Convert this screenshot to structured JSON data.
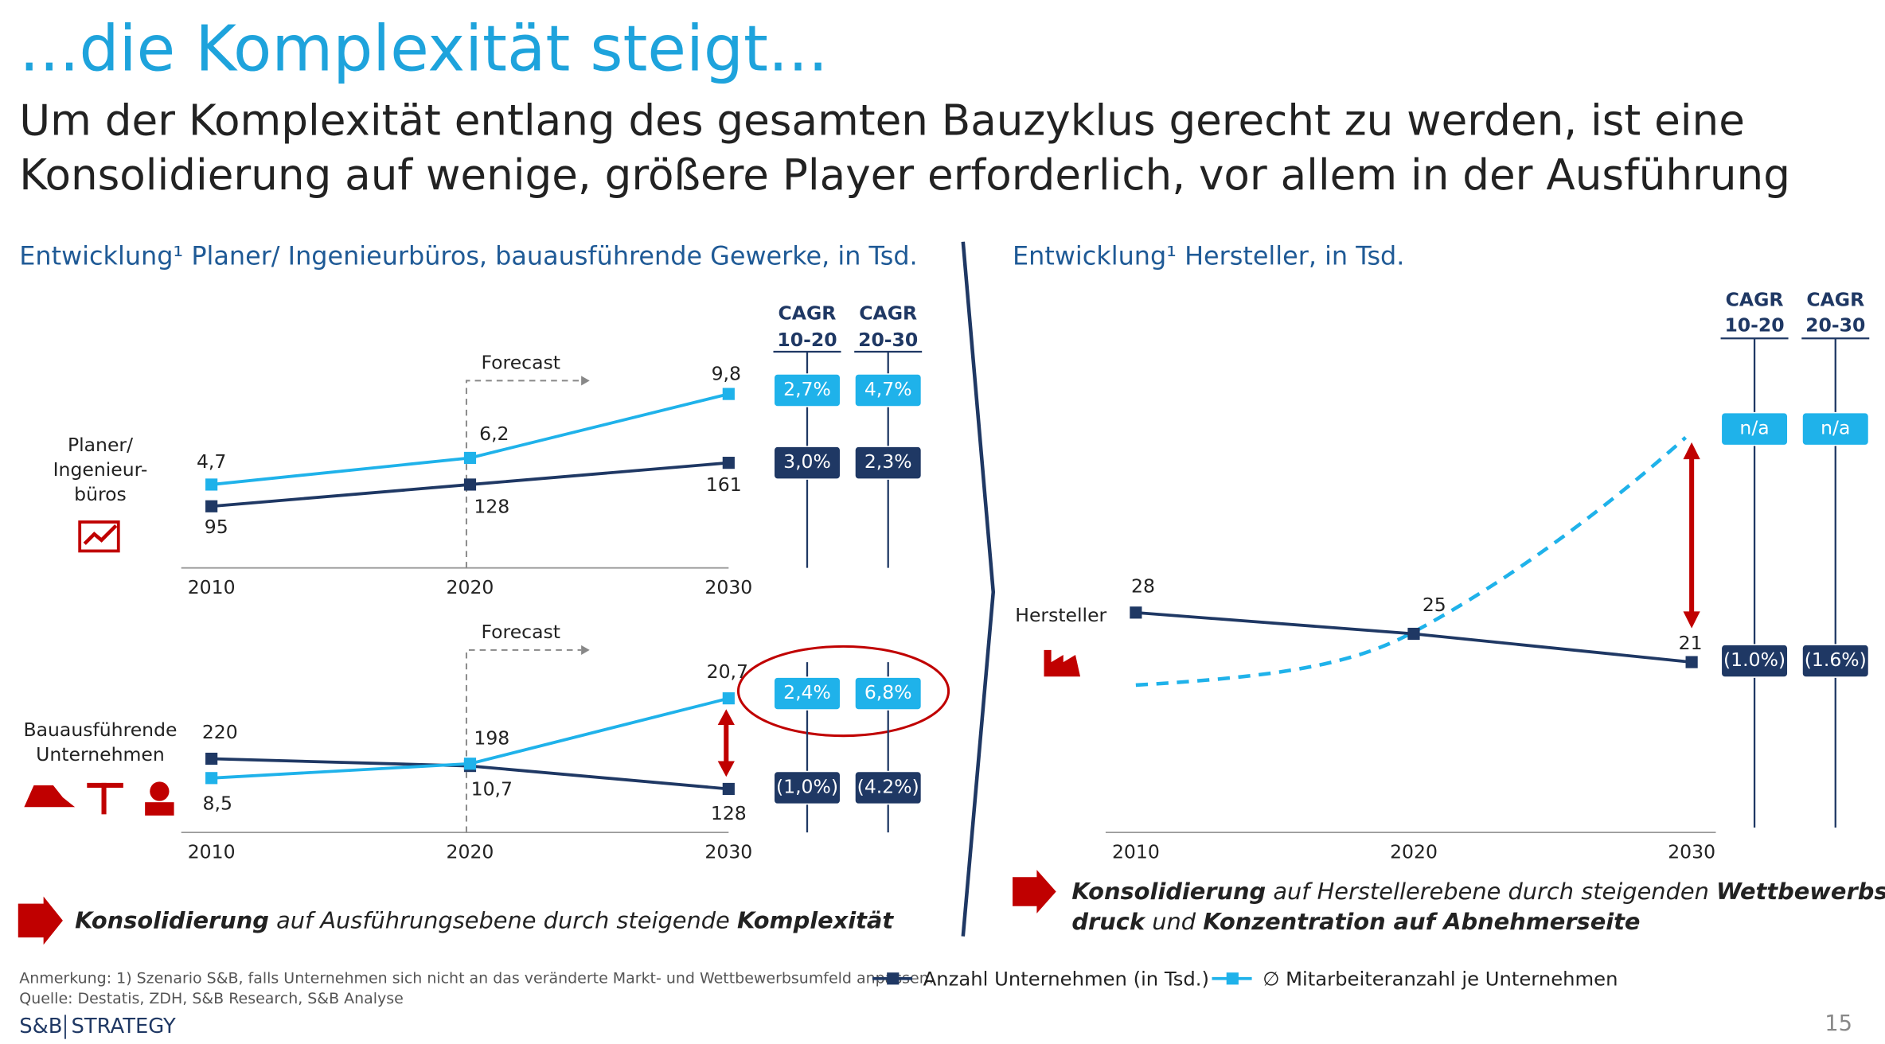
{
  "title": "...die Komplexität steigt...",
  "subtitle_lines": [
    "Um der Komplexität entlang des gesamten Bauzyklus gerecht zu werden, ist eine",
    "Konsolidierung auf wenige, größere Player erforderlich, vor allem in der Ausführung"
  ],
  "left_heading": "Entwicklung¹ Planer/ Ingenieurbüros, bauausführende Gewerke, in Tsd.",
  "right_heading": "Entwicklung¹ Hersteller, in Tsd.",
  "chart_data": [
    {
      "type": "line",
      "label_lines": [
        "Planer/",
        "Ingenieur-",
        "büros"
      ],
      "annotation": "Forecast",
      "x": [
        2010,
        2020,
        2030
      ],
      "xlim": [
        2010,
        2030
      ],
      "xticks": [
        2010,
        2020,
        2030
      ],
      "series": [
        {
          "color": "#1f3864",
          "values": [
            95,
            128,
            161
          ]
        },
        {
          "color": "#1fb2ea",
          "values": [
            4.7,
            6.2,
            9.8
          ],
          "value_labels": [
            "4,7",
            "6,2",
            "9,8"
          ]
        }
      ],
      "cagr_headers": [
        [
          "CAGR",
          "10-20"
        ],
        [
          "CAGR",
          "20-30"
        ]
      ],
      "cagr_rows": [
        [
          "2,7%",
          "4,7%"
        ],
        [
          "3,0%",
          "2,3%"
        ]
      ]
    },
    {
      "type": "line",
      "label_lines": [
        "Bauausführende",
        "Unternehmen"
      ],
      "annotation": "Forecast",
      "x": [
        2010,
        2020,
        2030
      ],
      "xlim": [
        2010,
        2030
      ],
      "xticks": [
        2010,
        2020,
        2030
      ],
      "series": [
        {
          "color": "#1f3864",
          "values": [
            220,
            198,
            128
          ]
        },
        {
          "color": "#1fb2ea",
          "values": [
            8.5,
            10.7,
            20.7
          ],
          "value_labels": [
            "8,5",
            "10,7",
            "20,7"
          ]
        }
      ],
      "cagr_rows": [
        [
          "2,4%",
          "6,8%"
        ],
        [
          "(1,0%)",
          "(4.2%)"
        ]
      ]
    },
    {
      "type": "line",
      "label_lines": [
        "Hersteller"
      ],
      "x": [
        2010,
        2020,
        2030
      ],
      "xlim": [
        2010,
        2030
      ],
      "xticks": [
        2010,
        2020,
        2030
      ],
      "series": [
        {
          "color": "#1f3864",
          "values": [
            28,
            25,
            21
          ]
        }
      ],
      "cagr_headers": [
        [
          "CAGR",
          "10-20"
        ],
        [
          "CAGR",
          "20-30"
        ]
      ],
      "cagr_rows": [
        [
          "n/a",
          "n/a"
        ],
        [
          "(1.0%)",
          "(1.6%)"
        ]
      ]
    }
  ],
  "conclusion_left": [
    [
      {
        "text": "Konsolidierung",
        "bold": true
      },
      {
        "text": " auf Ausführungsebene durch steigende ",
        "bold": false
      },
      {
        "text": "Komplexität",
        "bold": true
      }
    ]
  ],
  "conclusion_right": [
    [
      {
        "text": "Konsolidierung",
        "bold": true
      },
      {
        "text": " auf Herstellerebene durch steigenden ",
        "bold": false
      },
      {
        "text": "Wettbewerbs-",
        "bold": true
      }
    ],
    [
      {
        "text": "druck",
        "bold": true
      },
      {
        "text": " und ",
        "bold": false
      },
      {
        "text": "Konzentration auf Abnehmerseite",
        "bold": true
      }
    ]
  ],
  "legend": [
    {
      "name": "Anzahl Unternehmen (in Tsd.)",
      "color": "#1f3864"
    },
    {
      "name": "∅ Mitarbeiteranzahl je Unternehmen",
      "color": "#1fb2ea"
    }
  ],
  "footer": {
    "note": "Anmerkung: 1) Szenario S&B, falls Unternehmen sich nicht an das veränderte Markt- und Wettbewerbsumfeld anpassen.",
    "source": "Quelle: Destatis, ZDH, S&B Research, S&B Analyse",
    "logo_left": "S&B",
    "logo_right": "STRATEGY",
    "page": "15"
  }
}
